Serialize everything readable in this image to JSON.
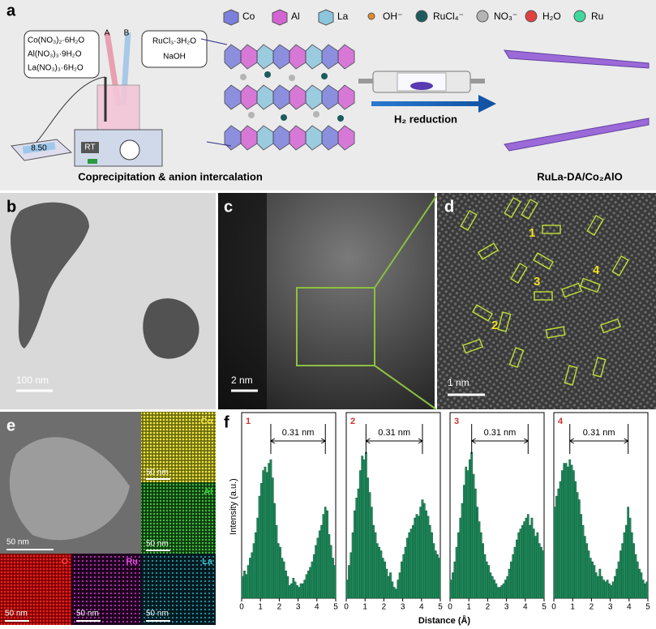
{
  "panel_labels": [
    "a",
    "b",
    "c",
    "d",
    "e",
    "f"
  ],
  "panel_a": {
    "reagents_left": [
      "Co(NO₃)₂·6H₂O",
      "Al(NO₃)₃·9H₂O",
      "La(NO₃)₃·6H₂O"
    ],
    "reagents_right": [
      "RuCl₃·3H₂O",
      "NaOH"
    ],
    "tubes": [
      "A",
      "B"
    ],
    "ph_reading": "8.50",
    "stirrer": "RT",
    "legend": [
      {
        "name": "Co",
        "color": "#7b80dc"
      },
      {
        "name": "Al",
        "color": "#d464d4"
      },
      {
        "name": "La",
        "color": "#8cc6dc"
      },
      {
        "name": "OH⁻",
        "color": "#e08c2c"
      },
      {
        "name": "RuCl₄⁻",
        "color": "#1d5b5c"
      },
      {
        "name": "NO₃⁻",
        "color": "#b4b4b4"
      },
      {
        "name": "H₂O",
        "color": "#e04040"
      },
      {
        "name": "Ru",
        "color": "#40d8a0"
      }
    ],
    "arrow_label": "H₂ reduction",
    "left_caption": "Coprecipitation & anion intercalation",
    "right_caption": "RuLa-DA/Co₂AlO"
  },
  "panel_b": {
    "scale_bar": "100 nm"
  },
  "panel_c": {
    "scale_bar": "2 nm"
  },
  "panel_d": {
    "scale_bar": "1 nm",
    "labels": [
      "1",
      "2",
      "3",
      "4"
    ]
  },
  "panel_e": {
    "scale_bars": [
      "50 nm",
      "50 nm",
      "50 nm",
      "50 nm",
      "50 nm",
      "50 nm"
    ],
    "elements": [
      "Co",
      "Al",
      "O",
      "Ru",
      "La"
    ]
  },
  "panel_f": {
    "type": "histogram",
    "ylabel": "Intensity (a.u.)",
    "xlabel": "Distance (Å)",
    "color": "#1f8a5c",
    "xlim": [
      0,
      5
    ],
    "xticks": [
      0,
      1,
      2,
      3,
      4,
      5
    ],
    "ylim": [
      0,
      1
    ],
    "bins": [
      0,
      0.1,
      0.2,
      0.3,
      0.4,
      0.5,
      0.6,
      0.7,
      0.8,
      0.9,
      1,
      1.1,
      1.2,
      1.3,
      1.4,
      1.5,
      1.6,
      1.7,
      1.8,
      1.9,
      2,
      2.1,
      2.2,
      2.3,
      2.4,
      2.5,
      2.6,
      2.7,
      2.8,
      2.9,
      3,
      3.1,
      3.2,
      3.3,
      3.4,
      3.5,
      3.6,
      3.7,
      3.8,
      3.9,
      4,
      4.1,
      4.2,
      4.3,
      4.4,
      4.5,
      4.6,
      4.7,
      4.8,
      4.9,
      5
    ],
    "plots": [
      {
        "label": "1",
        "annotation": "0.31 nm",
        "values": [
          0.12,
          0.15,
          0.13,
          0.18,
          0.22,
          0.25,
          0.3,
          0.36,
          0.44,
          0.56,
          0.63,
          0.7,
          0.72,
          0.69,
          0.74,
          0.76,
          0.66,
          0.52,
          0.4,
          0.3,
          0.28,
          0.22,
          0.2,
          0.15,
          0.12,
          0.07,
          0.08,
          0.11,
          0.09,
          0.07,
          0.06,
          0.08,
          0.08,
          0.1,
          0.13,
          0.15,
          0.17,
          0.2,
          0.24,
          0.29,
          0.33,
          0.37,
          0.4,
          0.46,
          0.5,
          0.48,
          0.35,
          0.29,
          0.22,
          0.18
        ]
      },
      {
        "label": "2",
        "annotation": "0.31 nm",
        "values": [
          0.1,
          0.18,
          0.25,
          0.36,
          0.48,
          0.55,
          0.6,
          0.7,
          0.78,
          0.76,
          0.8,
          0.66,
          0.58,
          0.5,
          0.4,
          0.36,
          0.3,
          0.28,
          0.26,
          0.22,
          0.2,
          0.16,
          0.12,
          0.14,
          0.09,
          0.06,
          0.05,
          0.1,
          0.14,
          0.2,
          0.24,
          0.28,
          0.33,
          0.36,
          0.38,
          0.4,
          0.44,
          0.46,
          0.45,
          0.5,
          0.54,
          0.52,
          0.48,
          0.45,
          0.4,
          0.36,
          0.3,
          0.26,
          0.24,
          0.22
        ]
      },
      {
        "label": "3",
        "annotation": "0.31 nm",
        "values": [
          0.1,
          0.14,
          0.2,
          0.28,
          0.36,
          0.44,
          0.52,
          0.62,
          0.72,
          0.7,
          0.76,
          0.8,
          0.68,
          0.6,
          0.5,
          0.42,
          0.36,
          0.3,
          0.24,
          0.2,
          0.18,
          0.14,
          0.12,
          0.1,
          0.08,
          0.06,
          0.06,
          0.07,
          0.08,
          0.1,
          0.12,
          0.16,
          0.2,
          0.24,
          0.28,
          0.32,
          0.36,
          0.38,
          0.4,
          0.42,
          0.44,
          0.46,
          0.4,
          0.44,
          0.38,
          0.34,
          0.36,
          0.3,
          0.28,
          0.26
        ]
      },
      {
        "label": "4",
        "annotation": "0.31 nm",
        "values": [
          0.5,
          0.56,
          0.6,
          0.64,
          0.7,
          0.74,
          0.74,
          0.72,
          0.76,
          0.73,
          0.7,
          0.64,
          0.58,
          0.54,
          0.46,
          0.4,
          0.34,
          0.3,
          0.26,
          0.22,
          0.2,
          0.18,
          0.14,
          0.12,
          0.16,
          0.12,
          0.1,
          0.09,
          0.1,
          0.08,
          0.07,
          0.09,
          0.12,
          0.16,
          0.2,
          0.26,
          0.3,
          0.36,
          0.4,
          0.5,
          0.44,
          0.36,
          0.3,
          0.24,
          0.2,
          0.16,
          0.14,
          0.1,
          0.08,
          0.09
        ]
      }
    ]
  }
}
